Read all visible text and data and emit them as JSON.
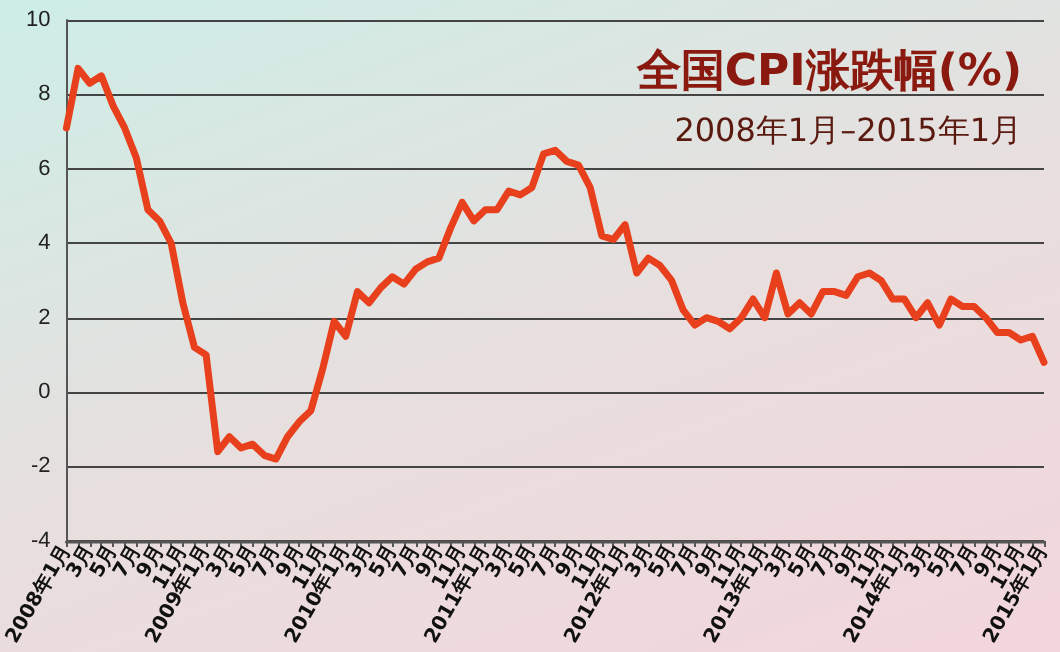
{
  "chart_data": {
    "type": "line",
    "title": "全国CPI涨跌幅(%)",
    "subtitle": "2008年1月–2015年1月",
    "categories": [
      "2008年1月",
      null,
      "3月",
      null,
      "5月",
      null,
      "7月",
      null,
      "9月",
      null,
      "11月",
      null,
      "2009年1月",
      null,
      "3月",
      null,
      "5月",
      null,
      "7月",
      null,
      "9月",
      null,
      "11月",
      null,
      "2010年1月",
      null,
      "3月",
      null,
      "5月",
      null,
      "7月",
      null,
      "9月",
      null,
      "11月",
      null,
      "2011年1月",
      null,
      "3月",
      null,
      "5月",
      null,
      "7月",
      null,
      "9月",
      null,
      "11月",
      null,
      "2012年1月",
      null,
      "3月",
      null,
      "5月",
      null,
      "7月",
      null,
      "9月",
      null,
      "11月",
      null,
      "2013年1月",
      null,
      "3月",
      null,
      "5月",
      null,
      "7月",
      null,
      "9月",
      null,
      "11月",
      null,
      "2014年1月",
      null,
      "3月",
      null,
      "5月",
      null,
      "7月",
      null,
      "9月",
      null,
      "11月",
      null,
      "2015年1月"
    ],
    "series": [
      {
        "color": "#e8401c",
        "values": [
          7.1,
          8.7,
          8.3,
          8.5,
          7.7,
          7.1,
          6.3,
          4.9,
          4.6,
          4.0,
          2.4,
          1.2,
          1.0,
          -1.6,
          -1.2,
          -1.5,
          -1.4,
          -1.7,
          -1.8,
          -1.2,
          -0.8,
          -0.5,
          0.6,
          1.9,
          1.5,
          2.7,
          2.4,
          2.8,
          3.1,
          2.9,
          3.3,
          3.5,
          3.6,
          4.4,
          5.1,
          4.6,
          4.9,
          4.9,
          5.4,
          5.3,
          5.5,
          6.4,
          6.5,
          6.2,
          6.1,
          5.5,
          4.2,
          4.1,
          4.5,
          3.2,
          3.6,
          3.4,
          3.0,
          2.2,
          1.8,
          2.0,
          1.9,
          1.7,
          2.0,
          2.5,
          2.0,
          3.2,
          2.1,
          2.4,
          2.1,
          2.7,
          2.7,
          2.6,
          3.1,
          3.2,
          3.0,
          2.5,
          2.5,
          2.0,
          2.4,
          1.8,
          2.5,
          2.3,
          2.3,
          2.0,
          1.6,
          1.6,
          1.4,
          1.5,
          0.8
        ]
      }
    ],
    "ylim": [
      -4,
      10
    ],
    "yticks": [
      -4,
      -2,
      0,
      2,
      4,
      6,
      8,
      10
    ],
    "grid": "y",
    "marker": "none",
    "line_style": "solid"
  }
}
